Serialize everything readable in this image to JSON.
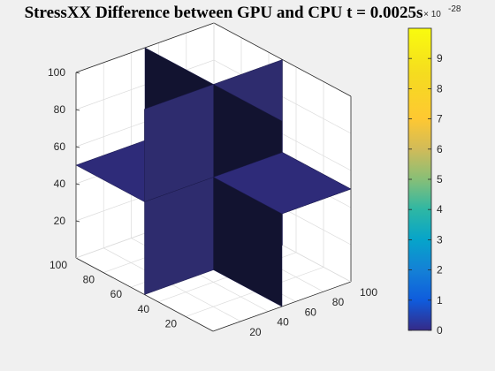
{
  "chart_data": {
    "type": "slice-3d",
    "title": "StressXX Difference between GPU and CPU t = 0.0025s",
    "xlabel": "",
    "ylabel": "",
    "zlabel": "",
    "x_ticks": [
      "20",
      "40",
      "60",
      "80",
      "100"
    ],
    "y_ticks": [
      "20",
      "40",
      "60",
      "80",
      "100"
    ],
    "z_ticks": [
      "20",
      "40",
      "60",
      "80",
      "100"
    ],
    "xlim": [
      0,
      100
    ],
    "ylim": [
      0,
      100
    ],
    "zlim": [
      0,
      100
    ],
    "grid": true,
    "slices": [
      {
        "plane": "x",
        "at": 50,
        "value": 0
      },
      {
        "plane": "y",
        "at": 50,
        "value": 0
      },
      {
        "plane": "z",
        "at": 50,
        "value": 0
      }
    ],
    "colorbar": {
      "min": 0,
      "max": 10,
      "ticks": [
        "0",
        "1",
        "2",
        "3",
        "4",
        "5",
        "6",
        "7",
        "8",
        "9"
      ],
      "exponent_label": "× 10",
      "exponent": "-28",
      "colormap": "parula"
    }
  }
}
